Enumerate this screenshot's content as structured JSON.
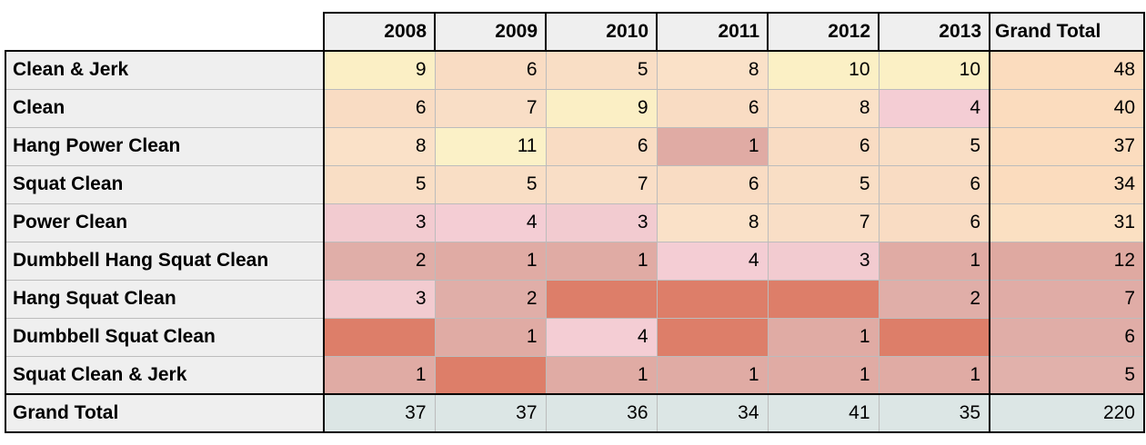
{
  "chart_data": {
    "type": "table",
    "title": "",
    "description": "Pivot table heatmap of clean-lift variations per year; cell color encodes count (salmon red = blank/0, dusty pink = low, peach = mid, pale yellow = high); grand-total row shaded blue-gray",
    "columns": [
      "2008",
      "2009",
      "2010",
      "2011",
      "2012",
      "2013",
      "Grand Total"
    ],
    "rows": [
      {
        "label": "Clean & Jerk",
        "values": [
          9,
          6,
          5,
          8,
          10,
          10
        ],
        "total": 48
      },
      {
        "label": "Clean",
        "values": [
          6,
          7,
          9,
          6,
          8,
          4
        ],
        "total": 40
      },
      {
        "label": "Hang Power Clean",
        "values": [
          8,
          11,
          6,
          1,
          6,
          5
        ],
        "total": 37
      },
      {
        "label": "Squat Clean",
        "values": [
          5,
          5,
          7,
          6,
          5,
          6
        ],
        "total": 34
      },
      {
        "label": "Power Clean",
        "values": [
          3,
          4,
          3,
          8,
          7,
          6
        ],
        "total": 31
      },
      {
        "label": "Dumbbell Hang Squat Clean",
        "values": [
          2,
          1,
          1,
          4,
          3,
          1
        ],
        "total": 12
      },
      {
        "label": "Hang Squat Clean",
        "values": [
          3,
          2,
          null,
          null,
          null,
          2
        ],
        "total": 7
      },
      {
        "label": "Dumbbell Squat Clean",
        "values": [
          null,
          1,
          4,
          null,
          1,
          null
        ],
        "total": 6
      },
      {
        "label": "Squat Clean & Jerk",
        "values": [
          1,
          null,
          1,
          1,
          1,
          1
        ],
        "total": 5
      }
    ],
    "grand_total": {
      "label": "Grand Total",
      "values": [
        37,
        37,
        36,
        34,
        41,
        35
      ],
      "total": 220
    }
  },
  "style": {
    "value_colors": {
      "blank": "#DD7E69",
      "1": "#E0ABA4",
      "2": "#E0AEA8",
      "3": "#F2CBD0",
      "4": "#F4CDD4",
      "5": "#F9DEC5",
      "6": "#F9DCC3",
      "7": "#F9DEC6",
      "8": "#FAE1C8",
      "9": "#FBEFC5",
      "10": "#FBF0C5",
      "11": "#FBF1C7"
    },
    "total_colors": [
      "#FBDCBE",
      "#FBDCBE",
      "#FBDCBE",
      "#FBDCBE",
      "#FBE0C2",
      "#DFA9A1",
      "#E0ACA6",
      "#E0ADA7",
      "#E1B1AB"
    ],
    "grand_row_bg": "#DCE6E5",
    "header_bg": "#EFEFEF",
    "label_bg": "#EFEFEF",
    "grid_color": "#BCBCBC",
    "frame_color": "#000000",
    "text_color": "#000000",
    "page_bg": "#FFFFFF"
  }
}
